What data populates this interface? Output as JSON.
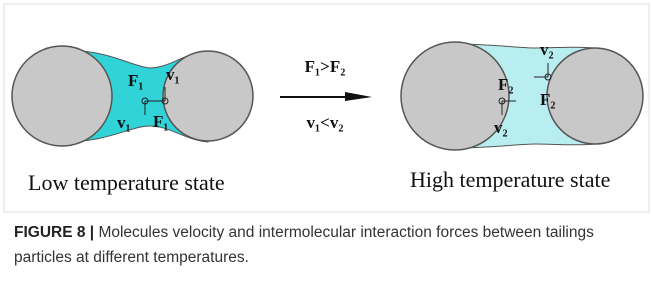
{
  "left_panel": {
    "labels": [
      "F₁",
      "v₁",
      "v₁",
      "F₁"
    ],
    "caption": "Low temperature state"
  },
  "arrow": {
    "top": "F₁>F₂",
    "bottom": "v₁<v₂"
  },
  "right_panel": {
    "labels": [
      "F₂",
      "v₂",
      "v₂",
      "F₂"
    ],
    "caption": "High temperature state"
  },
  "figure_caption": {
    "label": "FIGURE 8 |",
    "text": "Molecules velocity and intermolecular interaction forces between tailings particles at different temperatures."
  }
}
